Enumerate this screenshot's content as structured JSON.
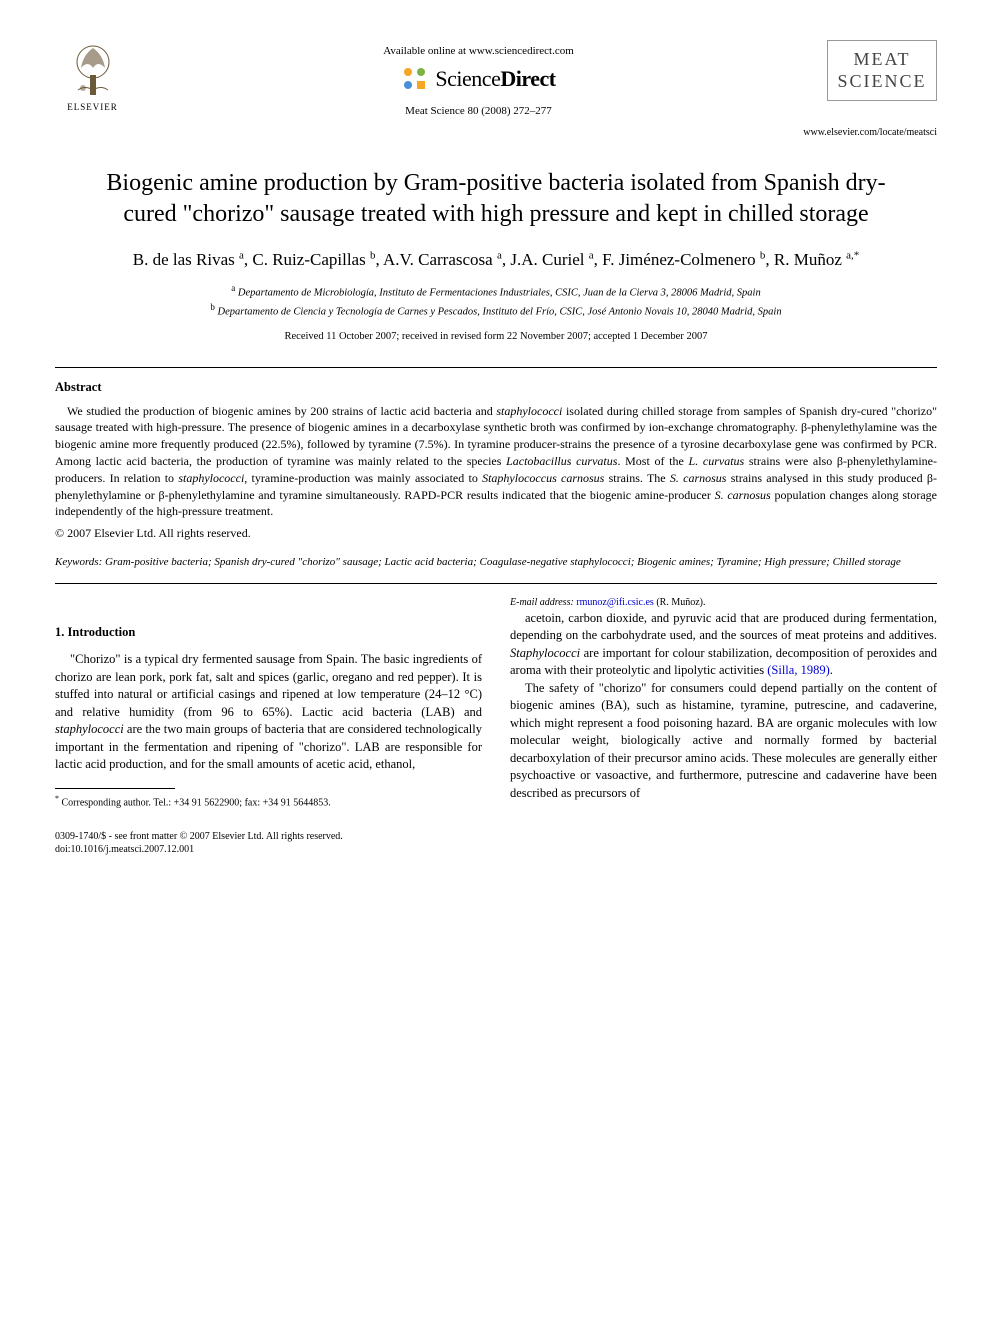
{
  "header": {
    "publisher_name": "ELSEVIER",
    "available_text": "Available online at www.sciencedirect.com",
    "sciencedirect_label_light": "Science",
    "sciencedirect_label_bold": "Direct",
    "journal_reference": "Meat Science 80 (2008) 272–277",
    "journal_cover_line1": "MEAT",
    "journal_cover_line2": "SCIENCE",
    "journal_url": "www.elsevier.com/locate/meatsci"
  },
  "article": {
    "title": "Biogenic amine production by Gram-positive bacteria isolated from Spanish dry-cured \"chorizo\" sausage treated with high pressure and kept in chilled storage",
    "authors_html": "B. de las Rivas <sup>a</sup>, C. Ruiz-Capillas <sup>b</sup>, A.V. Carrascosa <sup>a</sup>, J.A. Curiel <sup>a</sup>, F. Jiménez-Colmenero <sup>b</sup>, R. Muñoz <sup>a,*</sup>",
    "affiliation_a": "Departamento de Microbiología, Instituto de Fermentaciones Industriales, CSIC, Juan de la Cierva 3, 28006 Madrid, Spain",
    "affiliation_b": "Departamento de Ciencia y Tecnología de Carnes y Pescados, Instituto del Frío, CSIC, José Antonio Novais 10, 28040 Madrid, Spain",
    "dates": "Received 11 October 2007; received in revised form 22 November 2007; accepted 1 December 2007"
  },
  "abstract": {
    "heading": "Abstract",
    "text": "We studied the production of biogenic amines by 200 strains of lactic acid bacteria and staphylococci isolated during chilled storage from samples of Spanish dry-cured \"chorizo\" sausage treated with high-pressure. The presence of biogenic amines in a decarboxylase synthetic broth was confirmed by ion-exchange chromatography. β-phenylethylamine was the biogenic amine more frequently produced (22.5%), followed by tyramine (7.5%). In tyramine producer-strains the presence of a tyrosine decarboxylase gene was confirmed by PCR. Among lactic acid bacteria, the production of tyramine was mainly related to the species Lactobacillus curvatus. Most of the L. curvatus strains were also β-phenylethylamine-producers. In relation to staphylococci, tyramine-production was mainly associated to Staphylococcus carnosus strains. The S. carnosus strains analysed in this study produced β-phenylethylamine or β-phenylethylamine and tyramine simultaneously. RAPD-PCR results indicated that the biogenic amine-producer S. carnosus population changes along storage independently of the high-pressure treatment.",
    "copyright": "© 2007 Elsevier Ltd. All rights reserved."
  },
  "keywords": {
    "label": "Keywords:",
    "text": "Gram-positive bacteria; Spanish dry-cured \"chorizo\" sausage; Lactic acid bacteria; Coagulase-negative staphylococci; Biogenic amines; Tyramine; High pressure; Chilled storage"
  },
  "section1": {
    "heading": "1. Introduction",
    "para1": "\"Chorizo\" is a typical dry fermented sausage from Spain. The basic ingredients of chorizo are lean pork, pork fat, salt and spices (garlic, oregano and red pepper). It is stuffed into natural or artificial casings and ripened at low temperature (24–12 °C) and relative humidity (from 96 to 65%). Lactic acid bacteria (LAB) and staphylococci are the two main groups of bacteria that are considered technologically important in the fermentation and ripening of \"chorizo\". LAB are responsible for lactic acid production, and for the small amounts of acetic acid, ethanol,",
    "para2": "acetoin, carbon dioxide, and pyruvic acid that are produced during fermentation, depending on the carbohydrate used, and the sources of meat proteins and additives. Staphylococci are important for colour stabilization, decomposition of peroxides and aroma with their proteolytic and lipolytic activities (Silla, 1989).",
    "para3": "The safety of \"chorizo\" for consumers could depend partially on the content of biogenic amines (BA), such as histamine, tyramine, putrescine, and cadaverine, which might represent a food poisoning hazard. BA are organic molecules with low molecular weight, biologically active and normally formed by bacterial decarboxylation of their precursor amino acids. These molecules are generally either psychoactive or vasoactive, and furthermore, putrescine and cadaverine have been described as precursors of"
  },
  "footnote": {
    "corresponding": "Corresponding author. Tel.: +34 91 5622900; fax: +34 91 5644853.",
    "email_label": "E-mail address:",
    "email": "rmunoz@ifi.csic.es",
    "email_name": "(R. Muñoz)."
  },
  "footer": {
    "line1": "0309-1740/$ - see front matter © 2007 Elsevier Ltd. All rights reserved.",
    "line2": "doi:10.1016/j.meatsci.2007.12.001"
  },
  "colors": {
    "text": "#000000",
    "link": "#0000cc",
    "cover_border": "#999999",
    "cover_text": "#444444",
    "sd_orange": "#f5a623",
    "sd_green": "#7cb342",
    "sd_blue": "#4a90d9"
  }
}
